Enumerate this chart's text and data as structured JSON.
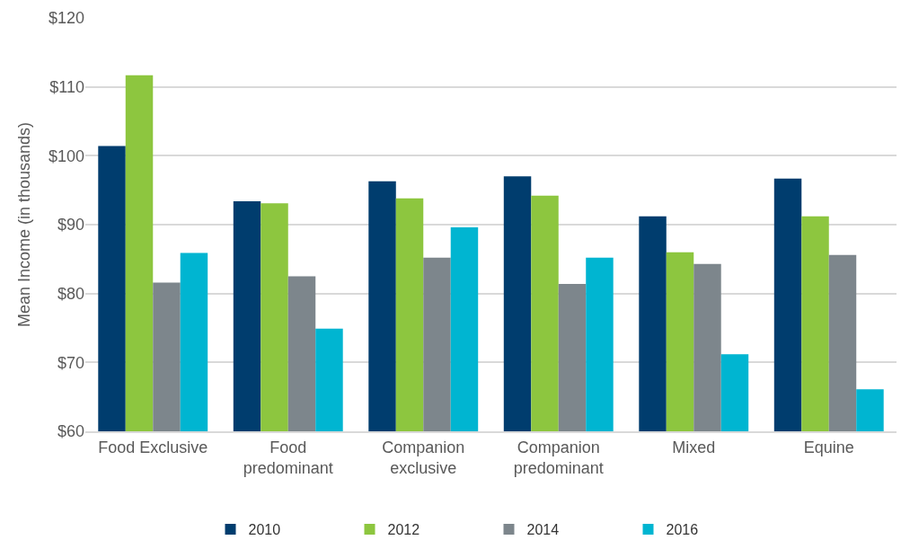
{
  "chart_data": {
    "type": "bar",
    "ylabel": "Mean Income (in thousands)",
    "categories": [
      "Food Exclusive",
      "Food\npredominant",
      "Companion\nexclusive",
      "Companion\npredominant",
      "Mixed",
      "Equine"
    ],
    "series": [
      {
        "name": "2010",
        "color": "#003d6e",
        "values": [
          101.4,
          93.4,
          96.3,
          97.0,
          91.2,
          96.7
        ]
      },
      {
        "name": "2012",
        "color": "#8dc63f",
        "values": [
          111.7,
          93.1,
          93.8,
          94.2,
          86.0,
          91.2
        ]
      },
      {
        "name": "2014",
        "color": "#7d868c",
        "values": [
          81.6,
          82.5,
          85.2,
          81.4,
          84.3,
          85.6
        ]
      },
      {
        "name": "2016",
        "color": "#00b5d1",
        "values": [
          85.9,
          74.9,
          89.6,
          85.2,
          71.2,
          66.1
        ]
      }
    ],
    "ylim": [
      60,
      120
    ],
    "yticks": [
      {
        "value": 60,
        "label": "$60"
      },
      {
        "value": 70,
        "label": "$70"
      },
      {
        "value": 80,
        "label": "$80"
      },
      {
        "value": 90,
        "label": "$90"
      },
      {
        "value": 100,
        "label": "$100"
      },
      {
        "value": 110,
        "label": "$110"
      },
      {
        "value": 120,
        "label": "$120"
      }
    ],
    "grid": "y",
    "legend": "bottom"
  }
}
